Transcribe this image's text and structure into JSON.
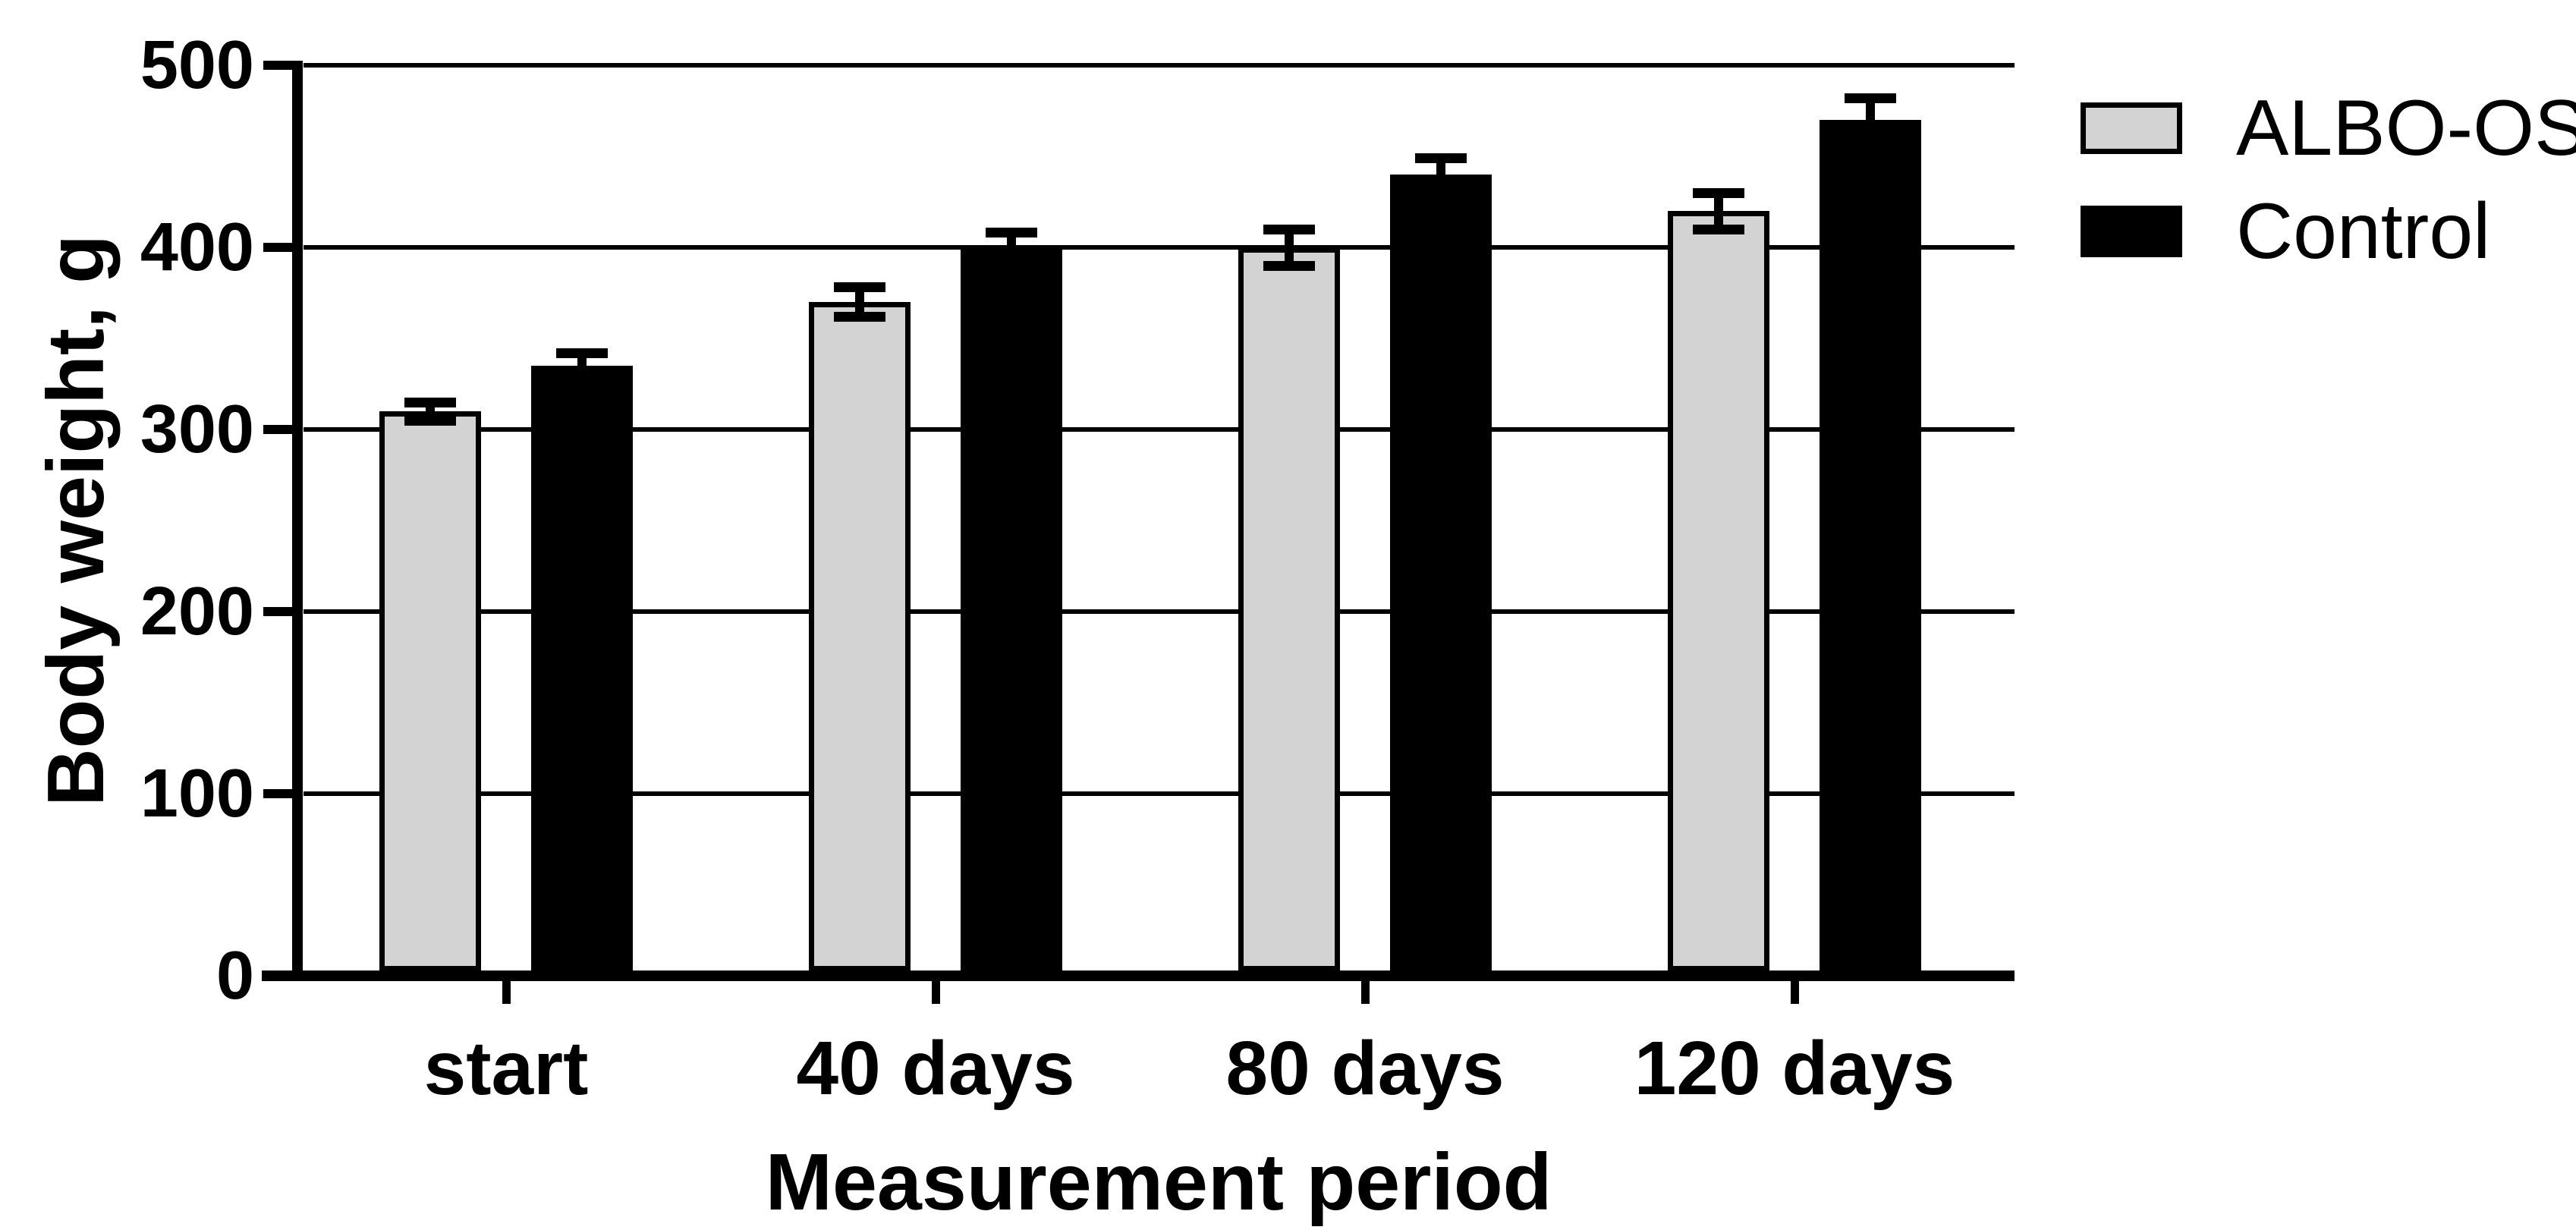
{
  "chart_data": {
    "type": "bar",
    "title": "",
    "categories": [
      "start",
      "40 days",
      "80 days",
      "120 days"
    ],
    "series": [
      {
        "name": "ALBO-OS",
        "fill": "#d3d3d3",
        "stroke": "#000000",
        "values": [
          310,
          370,
          400,
          420
        ],
        "errors": [
          5,
          8,
          10,
          10
        ]
      },
      {
        "name": "Control",
        "fill": "#000000",
        "stroke": "#000000",
        "values": [
          335,
          400,
          440,
          470
        ],
        "errors": [
          7,
          8,
          9,
          12
        ]
      }
    ],
    "xlabel": "Measurement period",
    "ylabel": "Body weight, g",
    "ylim": [
      0,
      500
    ],
    "yticks": [
      0,
      100,
      200,
      300,
      400,
      500
    ],
    "grid": true,
    "grid_color": "#000000",
    "background": "#ffffff",
    "legend_position": "top-right",
    "error_bars": "both-with-caps"
  }
}
